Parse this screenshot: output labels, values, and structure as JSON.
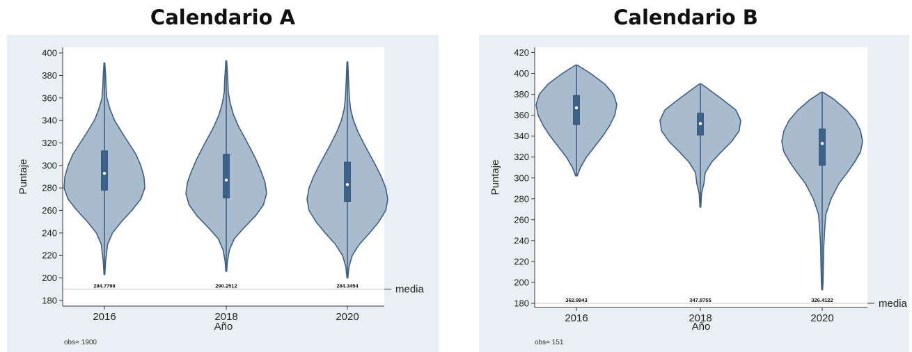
{
  "colors": {
    "violin_fill": "#a9bccd",
    "violin_stroke": "#3e5f82",
    "box_fill": "#3d6289",
    "median_dot": "#ffffff",
    "background": "#e9f0f3",
    "plot_area": "#ffffff"
  },
  "chart_data": [
    {
      "type": "violin",
      "title": "Calendario A",
      "xlabel": "Año",
      "ylabel": "Puntaje",
      "categories": [
        "2016",
        "2018",
        "2020"
      ],
      "ylim": [
        175,
        405
      ],
      "yticks": [
        180,
        200,
        220,
        240,
        260,
        280,
        300,
        320,
        340,
        360,
        380,
        400
      ],
      "reference_line": {
        "value": 190,
        "label": "media"
      },
      "mean_labels": [
        "294.7798",
        "290.2512",
        "284.3454"
      ],
      "obs_label": "obs= 1900",
      "grid": false,
      "violins": [
        {
          "category": "2016",
          "min": 203,
          "max": 391,
          "q1": 278,
          "median": 293,
          "q3": 313,
          "mode": 285,
          "profile": [
            [
              203,
              0.01
            ],
            [
              215,
              0.03
            ],
            [
              230,
              0.08
            ],
            [
              240,
              0.2
            ],
            [
              250,
              0.42
            ],
            [
              260,
              0.68
            ],
            [
              270,
              0.9
            ],
            [
              280,
              1.0
            ],
            [
              290,
              0.98
            ],
            [
              300,
              0.9
            ],
            [
              310,
              0.78
            ],
            [
              320,
              0.6
            ],
            [
              330,
              0.42
            ],
            [
              340,
              0.25
            ],
            [
              350,
              0.14
            ],
            [
              360,
              0.06
            ],
            [
              370,
              0.04
            ],
            [
              380,
              0.03
            ],
            [
              391,
              0.01
            ]
          ]
        },
        {
          "category": "2018",
          "min": 206,
          "max": 393,
          "q1": 271,
          "median": 287,
          "q3": 310,
          "mode": 277,
          "profile": [
            [
              206,
              0.01
            ],
            [
              215,
              0.03
            ],
            [
              225,
              0.08
            ],
            [
              235,
              0.2
            ],
            [
              245,
              0.45
            ],
            [
              255,
              0.72
            ],
            [
              265,
              0.92
            ],
            [
              275,
              1.0
            ],
            [
              285,
              0.96
            ],
            [
              295,
              0.86
            ],
            [
              305,
              0.74
            ],
            [
              315,
              0.6
            ],
            [
              325,
              0.45
            ],
            [
              335,
              0.3
            ],
            [
              345,
              0.18
            ],
            [
              355,
              0.1
            ],
            [
              365,
              0.05
            ],
            [
              375,
              0.04
            ],
            [
              393,
              0.01
            ]
          ]
        },
        {
          "category": "2020",
          "min": 200,
          "max": 392,
          "q1": 268,
          "median": 283,
          "q3": 303,
          "mode": 272,
          "profile": [
            [
              200,
              0.01
            ],
            [
              210,
              0.04
            ],
            [
              220,
              0.12
            ],
            [
              230,
              0.3
            ],
            [
              240,
              0.55
            ],
            [
              250,
              0.78
            ],
            [
              260,
              0.95
            ],
            [
              270,
              1.0
            ],
            [
              280,
              0.95
            ],
            [
              290,
              0.84
            ],
            [
              300,
              0.7
            ],
            [
              310,
              0.55
            ],
            [
              320,
              0.4
            ],
            [
              330,
              0.26
            ],
            [
              340,
              0.15
            ],
            [
              350,
              0.08
            ],
            [
              360,
              0.05
            ],
            [
              375,
              0.03
            ],
            [
              392,
              0.01
            ]
          ]
        }
      ]
    },
    {
      "type": "violin",
      "title": "Calendario B",
      "xlabel": "Año",
      "ylabel": "Puntaje",
      "categories": [
        "2016",
        "2018",
        "2020"
      ],
      "ylim": [
        176,
        425
      ],
      "yticks": [
        180,
        200,
        220,
        240,
        260,
        280,
        300,
        320,
        340,
        360,
        380,
        400,
        420
      ],
      "reference_line": {
        "value": 180,
        "label": "media"
      },
      "mean_labels": [
        "362.9943",
        "347.8755",
        "326.4122"
      ],
      "obs_label": "obs= 151",
      "grid": false,
      "violins": [
        {
          "category": "2016",
          "min": 302,
          "max": 408,
          "q1": 351,
          "median": 367,
          "q3": 379,
          "mode": 372,
          "profile": [
            [
              302,
              0.02
            ],
            [
              310,
              0.1
            ],
            [
              320,
              0.25
            ],
            [
              330,
              0.45
            ],
            [
              340,
              0.65
            ],
            [
              350,
              0.82
            ],
            [
              360,
              0.95
            ],
            [
              370,
              1.0
            ],
            [
              380,
              0.92
            ],
            [
              390,
              0.7
            ],
            [
              400,
              0.35
            ],
            [
              408,
              0.02
            ]
          ]
        },
        {
          "category": "2018",
          "min": 272,
          "max": 390,
          "q1": 341,
          "median": 352,
          "q3": 362,
          "mode": 355,
          "profile": [
            [
              272,
              0.01
            ],
            [
              285,
              0.03
            ],
            [
              295,
              0.09
            ],
            [
              305,
              0.12
            ],
            [
              315,
              0.28
            ],
            [
              325,
              0.52
            ],
            [
              335,
              0.78
            ],
            [
              345,
              0.96
            ],
            [
              355,
              1.0
            ],
            [
              365,
              0.88
            ],
            [
              375,
              0.55
            ],
            [
              385,
              0.2
            ],
            [
              390,
              0.02
            ]
          ]
        },
        {
          "category": "2020",
          "min": 193,
          "max": 382,
          "q1": 312,
          "median": 333,
          "q3": 347,
          "mode": 338,
          "profile": [
            [
              193,
              0.01
            ],
            [
              200,
              0.02
            ],
            [
              215,
              0.03
            ],
            [
              235,
              0.04
            ],
            [
              250,
              0.06
            ],
            [
              265,
              0.09
            ],
            [
              280,
              0.22
            ],
            [
              295,
              0.42
            ],
            [
              305,
              0.62
            ],
            [
              315,
              0.8
            ],
            [
              325,
              0.95
            ],
            [
              335,
              1.0
            ],
            [
              345,
              0.95
            ],
            [
              355,
              0.82
            ],
            [
              365,
              0.6
            ],
            [
              375,
              0.3
            ],
            [
              382,
              0.02
            ]
          ]
        }
      ]
    }
  ]
}
